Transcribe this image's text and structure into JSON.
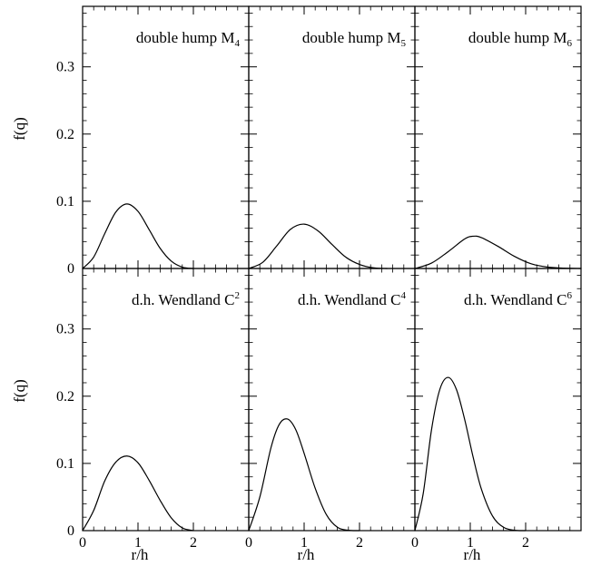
{
  "chart_data": {
    "type": "line",
    "xlabel": "r/h",
    "ylabel": "f(q)",
    "xlim": [
      0,
      3
    ],
    "ylim": [
      0,
      0.39
    ],
    "x_ticks": [
      0,
      1,
      2
    ],
    "y_ticks": [
      0,
      0.1,
      0.2,
      0.3
    ],
    "x_tick_labels": [
      "0",
      "1",
      "2"
    ],
    "y_tick_labels": [
      "0",
      "0.1",
      "0.2",
      "0.3"
    ],
    "grid": false,
    "panels": [
      {
        "title_main": "double hump M",
        "title_index": "4",
        "title_index_style": "sub",
        "series": [
          {
            "x": [
              0,
              0.2,
              0.4,
              0.6,
              0.8,
              1.0,
              1.2,
              1.4,
              1.6,
              1.8,
              2.0
            ],
            "y": [
              0,
              0.017,
              0.052,
              0.084,
              0.096,
              0.085,
              0.058,
              0.03,
              0.011,
              0.002,
              0
            ]
          }
        ]
      },
      {
        "title_main": "double hump M",
        "title_index": "5",
        "title_index_style": "sub",
        "series": [
          {
            "x": [
              0,
              0.25,
              0.5,
              0.75,
              1.0,
              1.25,
              1.5,
              1.75,
              2.0,
              2.25,
              2.5
            ],
            "y": [
              0,
              0.009,
              0.033,
              0.058,
              0.066,
              0.056,
              0.036,
              0.017,
              0.006,
              0.001,
              0
            ]
          }
        ]
      },
      {
        "title_main": "double hump M",
        "title_index": "6",
        "title_index_style": "sub",
        "series": [
          {
            "x": [
              0,
              0.3,
              0.6,
              0.9,
              1.05,
              1.2,
              1.5,
              1.8,
              2.1,
              2.4,
              2.7,
              3.0
            ],
            "y": [
              0,
              0.008,
              0.025,
              0.044,
              0.048,
              0.046,
              0.033,
              0.018,
              0.007,
              0.002,
              0.0005,
              0
            ]
          }
        ]
      },
      {
        "title_main": "d.h. Wendland C",
        "title_index": "2",
        "title_index_style": "sup",
        "series": [
          {
            "x": [
              0,
              0.2,
              0.4,
              0.6,
              0.8,
              1.0,
              1.2,
              1.4,
              1.6,
              1.8,
              2.0
            ],
            "y": [
              0,
              0.03,
              0.074,
              0.102,
              0.111,
              0.101,
              0.075,
              0.045,
              0.019,
              0.004,
              0
            ]
          }
        ]
      },
      {
        "title_main": "d.h. Wendland C",
        "title_index": "4",
        "title_index_style": "sup",
        "series": [
          {
            "x": [
              0,
              0.2,
              0.4,
              0.55,
              0.7,
              0.85,
              1.0,
              1.2,
              1.4,
              1.6,
              1.8,
              2.0
            ],
            "y": [
              0,
              0.05,
              0.123,
              0.158,
              0.166,
              0.15,
              0.115,
              0.063,
              0.024,
              0.005,
              0.0005,
              0
            ]
          }
        ]
      },
      {
        "title_main": "d.h. Wendland C",
        "title_index": "6",
        "title_index_style": "sup",
        "series": [
          {
            "x": [
              0,
              0.15,
              0.3,
              0.45,
              0.6,
              0.75,
              0.9,
              1.05,
              1.2,
              1.4,
              1.6,
              1.8,
              2.0
            ],
            "y": [
              0,
              0.055,
              0.15,
              0.21,
              0.228,
              0.21,
              0.165,
              0.11,
              0.062,
              0.022,
              0.005,
              0.0005,
              0
            ]
          }
        ]
      }
    ]
  }
}
